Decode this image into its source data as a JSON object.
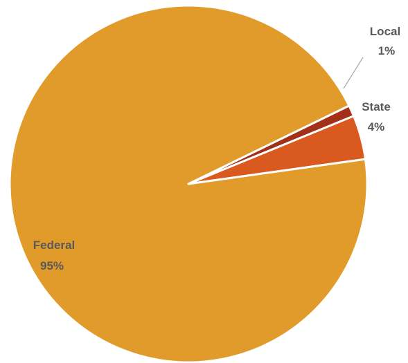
{
  "chart_data": {
    "type": "pie",
    "title": "",
    "slices": [
      {
        "name": "Federal",
        "value": 95,
        "label": "95%",
        "color": "#E09B2A"
      },
      {
        "name": "State",
        "value": 4,
        "label": "4%",
        "color": "#D9591E"
      },
      {
        "name": "Local",
        "value": 1,
        "label": "1%",
        "color": "#A3311A"
      }
    ],
    "legend": "none",
    "data_labels": "category and percentage"
  }
}
